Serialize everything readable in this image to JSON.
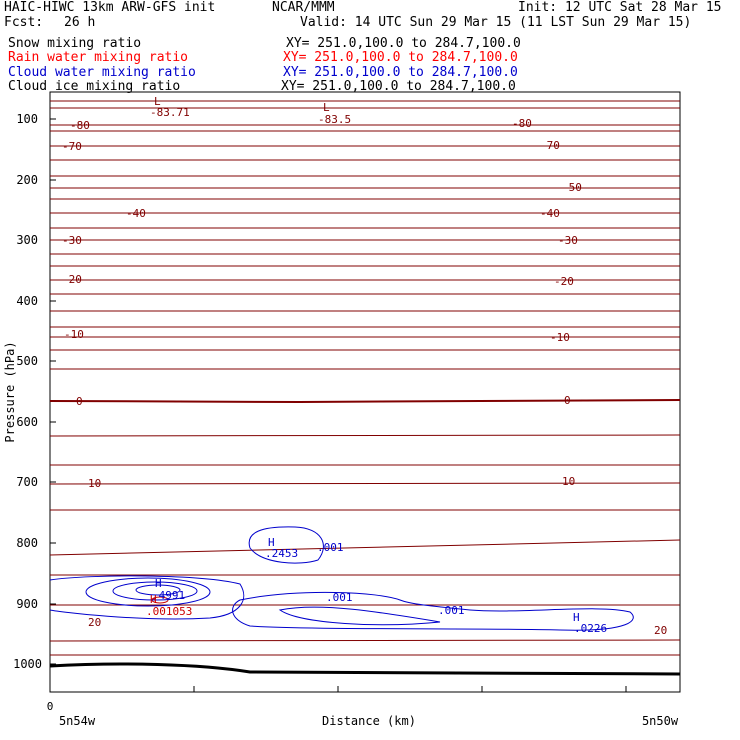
{
  "header": {
    "model": "HAIC-HIWC 13km ARW-GFS init",
    "org": "NCAR/MMM",
    "init": "Init: 12 UTC Sat 28 Mar 15",
    "fcst_label": "Fcst:",
    "fcst_value": "26 h",
    "valid": "Valid: 14 UTC Sun 29 Mar 15 (11 LST Sun 29 Mar 15)"
  },
  "fields": [
    {
      "name": "Snow mixing ratio",
      "xy": "XY= 251.0,100.0 to 284.7,100.0",
      "color": "#000000"
    },
    {
      "name": "Rain water mixing ratio",
      "xy": "XY= 251.0,100.0 to 284.7,100.0",
      "color": "#ff0000"
    },
    {
      "name": "Cloud water mixing ratio",
      "xy": "XY= 251.0,100.0 to 284.7,100.0",
      "color": "#0000cc"
    },
    {
      "name": "Cloud ice mixing ratio",
      "xy": "XY= 251.0,100.0 to 284.7,100.0",
      "color": "#000000"
    }
  ],
  "chart_data": {
    "type": "contour",
    "ylabel": "Pressure (hPa)",
    "xlabel": "Distance (km)",
    "yticks": [
      "100",
      "200",
      "300",
      "400",
      "500",
      "600",
      "700",
      "800",
      "900",
      "1000"
    ],
    "ylim": [
      1050,
      70
    ],
    "x_tick_zero": "0",
    "x_left_label": "5n54w",
    "x_right_label": "5n50w",
    "temperature_labels": [
      {
        "text": "-80",
        "color": "#800000"
      },
      {
        "text": "-70",
        "color": "#800000"
      },
      {
        "text": "-40",
        "color": "#800000"
      },
      {
        "text": "-30",
        "color": "#800000"
      },
      {
        "text": "-20",
        "color": "#800000"
      },
      {
        "text": "-10",
        "color": "#800000"
      },
      {
        "text": "0",
        "color": "#800000"
      },
      {
        "text": "10",
        "color": "#800000"
      },
      {
        "text": "20",
        "color": "#800000"
      },
      {
        "text": "-80",
        "color": "#800000"
      },
      {
        "text": "-70",
        "color": "#800000"
      },
      {
        "text": "-50",
        "color": "#800000"
      },
      {
        "text": "-40",
        "color": "#800000"
      },
      {
        "text": "-30",
        "color": "#800000"
      },
      {
        "text": "-20",
        "color": "#800000"
      },
      {
        "text": "-10",
        "color": "#800000"
      },
      {
        "text": "0",
        "color": "#800000"
      },
      {
        "text": "10",
        "color": "#800000"
      },
      {
        "text": "20",
        "color": "#800000"
      }
    ],
    "lows": [
      {
        "mark": "L",
        "value": "-83.71"
      },
      {
        "mark": "L",
        "value": "-83.5"
      }
    ],
    "cloud_labels": [
      {
        "mark": "H",
        "value": ".2453"
      },
      {
        "mark": "",
        "value": ".001"
      },
      {
        "mark": "H",
        "value": ".4991"
      },
      {
        "mark": "",
        "value": ".001"
      },
      {
        "mark": "",
        "value": ".001"
      },
      {
        "mark": "H",
        "value": ".0226"
      }
    ],
    "rain_labels": [
      {
        "mark": "H",
        "value": ".001053"
      }
    ]
  }
}
